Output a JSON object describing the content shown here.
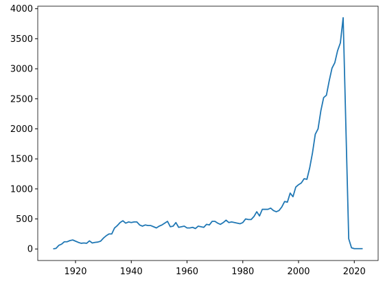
{
  "chart_data": {
    "type": "line",
    "x": [
      1912,
      1913,
      1914,
      1915,
      1916,
      1917,
      1918,
      1919,
      1920,
      1921,
      1922,
      1923,
      1924,
      1925,
      1926,
      1927,
      1928,
      1929,
      1930,
      1931,
      1932,
      1933,
      1934,
      1935,
      1936,
      1937,
      1938,
      1939,
      1940,
      1941,
      1942,
      1943,
      1944,
      1945,
      1946,
      1947,
      1948,
      1949,
      1950,
      1951,
      1952,
      1953,
      1954,
      1955,
      1956,
      1957,
      1958,
      1959,
      1960,
      1961,
      1962,
      1963,
      1964,
      1965,
      1966,
      1967,
      1968,
      1969,
      1970,
      1971,
      1972,
      1973,
      1974,
      1975,
      1976,
      1977,
      1978,
      1979,
      1980,
      1981,
      1982,
      1983,
      1984,
      1985,
      1986,
      1987,
      1988,
      1989,
      1990,
      1991,
      1992,
      1993,
      1994,
      1995,
      1996,
      1997,
      1998,
      1999,
      2000,
      2001,
      2002,
      2003,
      2004,
      2005,
      2006,
      2007,
      2008,
      2009,
      2010,
      2011,
      2012,
      2013,
      2014,
      2015,
      2016,
      2017,
      2018,
      2019,
      2020,
      2021,
      2022,
      2023
    ],
    "series": [
      {
        "color": "#1f77b4",
        "values": [
          2,
          10,
          60,
          80,
          120,
          120,
          140,
          150,
          130,
          110,
          95,
          100,
          95,
          135,
          100,
          110,
          115,
          130,
          180,
          220,
          250,
          250,
          350,
          390,
          440,
          470,
          430,
          450,
          440,
          450,
          450,
          400,
          380,
          400,
          390,
          390,
          370,
          350,
          380,
          400,
          430,
          460,
          370,
          380,
          440,
          360,
          370,
          380,
          350,
          350,
          360,
          340,
          380,
          370,
          360,
          410,
          400,
          460,
          460,
          430,
          410,
          440,
          480,
          440,
          450,
          440,
          430,
          420,
          440,
          500,
          490,
          490,
          540,
          620,
          550,
          660,
          660,
          660,
          680,
          640,
          620,
          640,
          700,
          790,
          780,
          930,
          870,
          1030,
          1070,
          1100,
          1170,
          1160,
          1350,
          1600,
          1910,
          2000,
          2300,
          2520,
          2560,
          2800,
          3010,
          3100,
          3300,
          3430,
          3850,
          2000,
          170,
          20,
          5,
          5,
          5,
          5
        ]
      }
    ],
    "xlim": [
      1906.45,
      2028.55
    ],
    "xticks": [
      1920,
      1940,
      1960,
      1980,
      2000,
      2020
    ],
    "ylim": [
      -192,
      4042
    ],
    "yticks": [
      0,
      500,
      1000,
      1500,
      2000,
      2500,
      3000,
      3500,
      4000
    ]
  }
}
